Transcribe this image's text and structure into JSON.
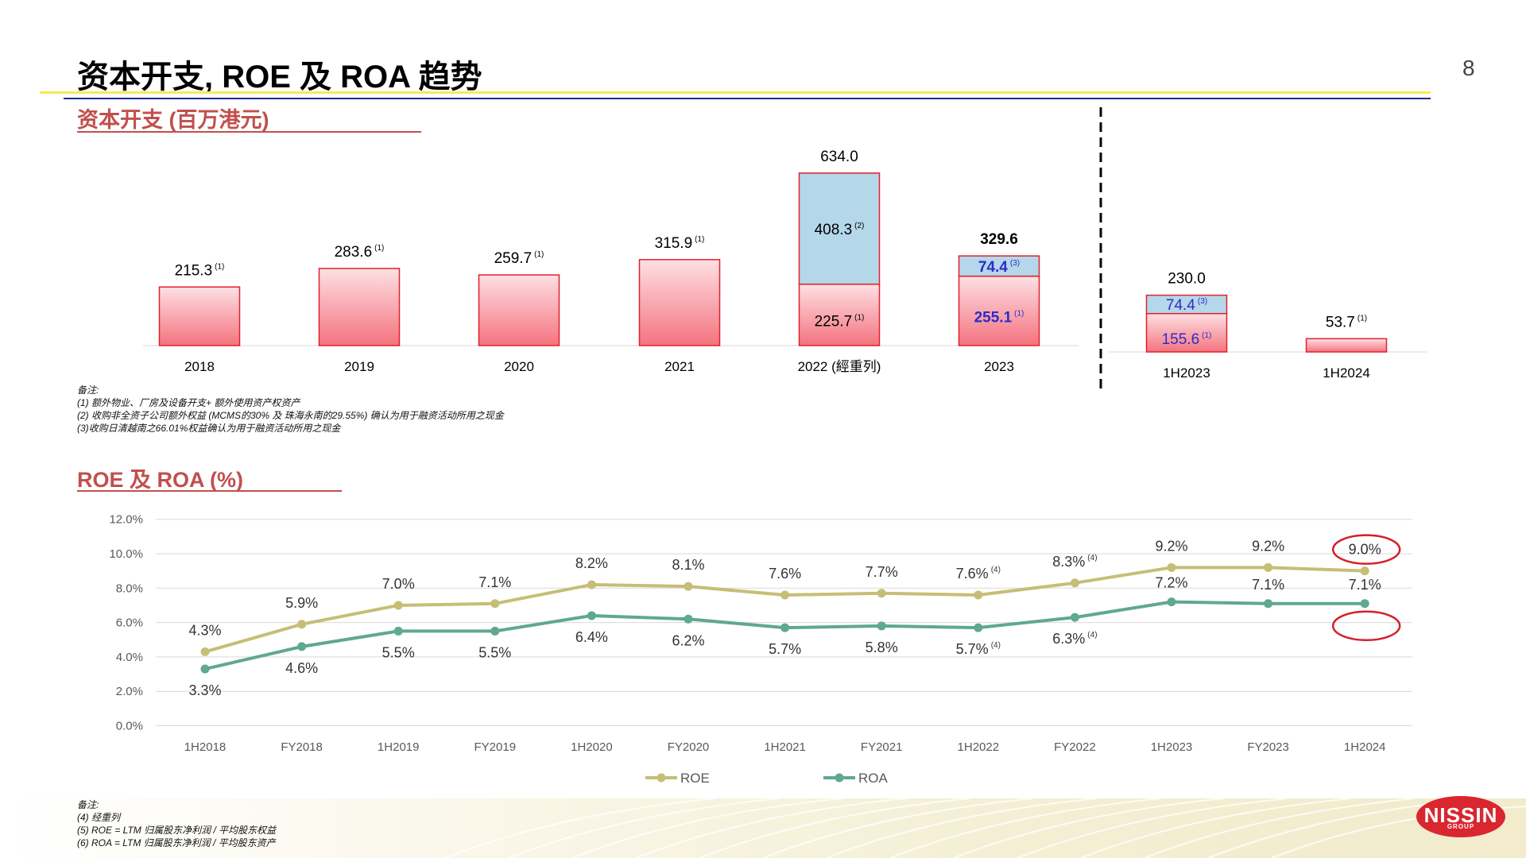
{
  "page": {
    "title": "资本开支, ROE 及 ROA 趋势",
    "page_number": "8",
    "logo_text": "NISSIN",
    "logo_subtext": "GROUP"
  },
  "capex": {
    "section_title": "资本开支 (百万港元)",
    "notes": [
      "备注:",
      "(1) 额外物业、厂房及设备开支+ 额外使用资产权资产",
      "(2) 收购非全资子公司额外权益 (MCMS的30% 及 珠海永南的29.55%) 确认为用于融资活动所用之现金",
      "(3)收购日清越南之66.01%权益确认为用于融资活动所用之现金"
    ]
  },
  "ratios": {
    "section_title": "ROE 及 ROA (%)",
    "notes": [
      "备注:",
      "(4) 经重列",
      "(5) ROE = LTM 归属股东净利润 / 平均股东权益",
      "(6) ROA = LTM 归属股东净利润 / 平均股东资产"
    ]
  },
  "colors": {
    "accent_red": "#c0504d",
    "bar_pink_top": "#fde0e3",
    "bar_pink_bottom": "#f4737f",
    "bar_blue": "#b4d7ea",
    "bar_border_red": "#e3202c",
    "roe_line": "#c6be76",
    "roa_line": "#5fa98c",
    "highlight_blue": "#2c2cc9",
    "circle_red": "#d6202a"
  },
  "chart_data": [
    {
      "type": "bar",
      "stacked": true,
      "categories": [
        "2018",
        "2019",
        "2020",
        "2021",
        "2022 (經重列)",
        "2023"
      ],
      "series": [
        {
          "values": [
            215.3,
            283.6,
            259.7,
            315.9,
            225.7,
            255.1
          ],
          "notes": [
            "(1)",
            "(1)",
            "(1)",
            "(1)",
            "(1)",
            "(1)"
          ]
        },
        {
          "values": [
            null,
            null,
            null,
            null,
            408.3,
            74.4
          ],
          "notes": [
            null,
            null,
            null,
            null,
            "(2)",
            "(3)"
          ]
        }
      ],
      "totals": [
        "215.3",
        "283.6",
        "259.7",
        "315.9",
        "634.0",
        "329.6"
      ],
      "segment_labels": [
        [
          "215.3",
          "283.6",
          "259.7",
          "315.9",
          "225.7",
          "255.1"
        ],
        [
          null,
          null,
          null,
          null,
          "408.3",
          "74.4"
        ]
      ],
      "highlight_category": "2023",
      "grid": false,
      "legend": "none"
    },
    {
      "type": "bar",
      "stacked": true,
      "categories": [
        "1H2023",
        "1H2024"
      ],
      "series": [
        {
          "values": [
            155.6,
            53.7
          ],
          "notes": [
            "(1)",
            "(1)"
          ]
        },
        {
          "values": [
            74.4,
            null
          ],
          "notes": [
            "(3)",
            null
          ]
        }
      ],
      "totals": [
        "230.0",
        "53.7"
      ],
      "segment_labels": [
        [
          "155.6",
          "53.7"
        ],
        [
          "74.4",
          null
        ]
      ],
      "grid": false,
      "legend": "none"
    },
    {
      "type": "line",
      "x": [
        "1H2018",
        "FY2018",
        "1H2019",
        "FY2019",
        "1H2020",
        "FY2020",
        "1H2021",
        "FY2021",
        "1H2022",
        "FY2022",
        "1H2023",
        "FY2023",
        "1H2024"
      ],
      "series": [
        {
          "name": "ROE",
          "values": [
            4.3,
            5.9,
            7.0,
            7.1,
            8.2,
            8.1,
            7.6,
            7.7,
            7.6,
            8.3,
            9.2,
            9.2,
            9.0
          ],
          "labels": [
            "4.3%",
            "5.9%",
            "7.0%",
            "7.1%",
            "8.2%",
            "8.1%",
            "7.6%",
            "7.7%",
            "7.6%",
            "8.3%",
            "9.2%",
            "9.2%",
            "9.0%"
          ],
          "notes": [
            null,
            null,
            null,
            null,
            null,
            null,
            null,
            null,
            "(4)",
            "(4)",
            null,
            null,
            null
          ]
        },
        {
          "name": "ROA",
          "values": [
            3.3,
            4.6,
            5.5,
            5.5,
            6.4,
            6.2,
            5.7,
            5.8,
            5.7,
            6.3,
            7.2,
            7.1,
            7.1
          ],
          "labels": [
            "3.3%",
            "4.6%",
            "5.5%",
            "5.5%",
            "6.4%",
            "6.2%",
            "5.7%",
            "5.8%",
            "5.7%",
            "6.3%",
            "7.2%",
            "7.1%",
            "7.1%"
          ],
          "notes": [
            null,
            null,
            null,
            null,
            null,
            null,
            null,
            null,
            "(4)",
            "(4)",
            null,
            null,
            null
          ]
        }
      ],
      "y_ticks": [
        "0.0%",
        "2.0%",
        "4.0%",
        "6.0%",
        "8.0%",
        "10.0%",
        "12.0%"
      ],
      "ylim": [
        0,
        12
      ],
      "grid": true,
      "legend": "bottom",
      "highlight_x": "1H2024"
    }
  ]
}
